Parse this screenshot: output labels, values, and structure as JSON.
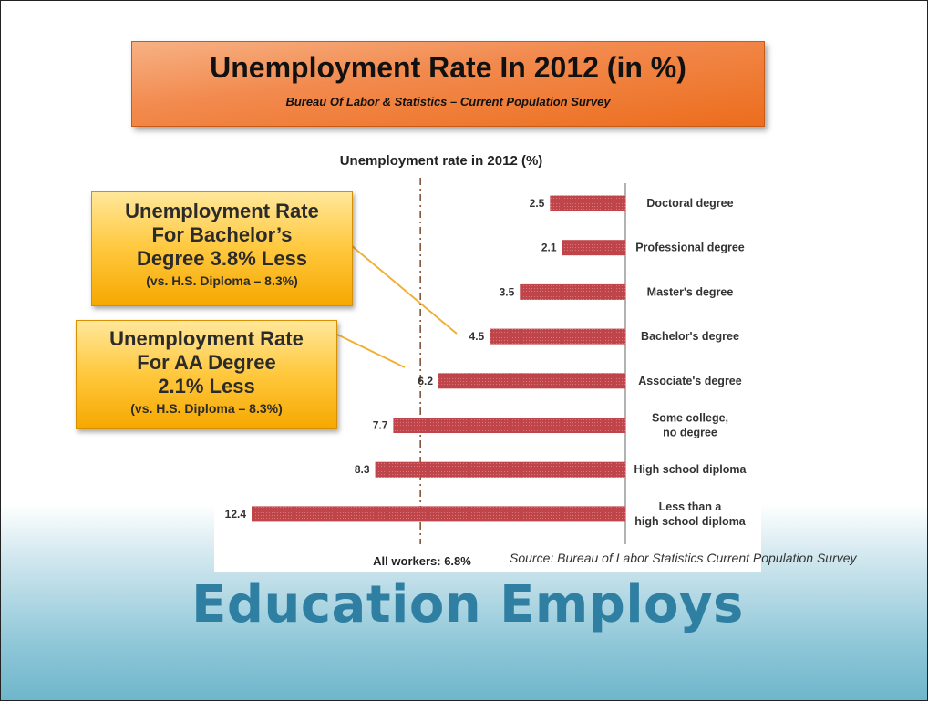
{
  "slide": {
    "title": "Unemployment Rate In 2012 (in %)",
    "subtitle": "Bureau Of Labor & Statistics – Current Population Survey",
    "bottom_title": "Education Employs",
    "source_note": "Source: Bureau of Labor Statistics Current Population Survey"
  },
  "callouts": {
    "bachelors": {
      "line1": "Unemployment Rate",
      "line2": "For Bachelor’s",
      "line3": "Degree 3.8% Less",
      "line4": "(vs. H.S. Diploma – 8.3%)"
    },
    "associates": {
      "line1": "Unemployment Rate",
      "line2": "For AA Degree",
      "line3": "2.1% Less",
      "line4": "(vs. H.S. Diploma – 8.3%)"
    }
  },
  "colors": {
    "bar": "#c0454a",
    "title_box": "#ec6d1d",
    "callout": "#ffc83d",
    "bottom_title": "#2f7fa3"
  },
  "chart_data": {
    "type": "bar",
    "orientation": "horizontal",
    "title": "Unemployment rate in 2012 (%)",
    "categories": [
      "Doctoral degree",
      "Professional degree",
      "Master's degree",
      "Bachelor's degree",
      "Associate's degree",
      "Some college,\nno degree",
      "High school diploma",
      "Less than a\nhigh school diploma"
    ],
    "values": [
      2.5,
      2.1,
      3.5,
      4.5,
      6.2,
      7.7,
      8.3,
      12.4
    ],
    "value_labels": [
      "2.5",
      "2.1",
      "3.5",
      "4.5",
      "6.2",
      "7.7",
      "8.3",
      "12.4"
    ],
    "reference_line": {
      "value": 6.8,
      "label": "All workers: 6.8%"
    },
    "xlim": [
      0,
      12.4
    ],
    "bars_extend": "leftward",
    "grid": false
  }
}
